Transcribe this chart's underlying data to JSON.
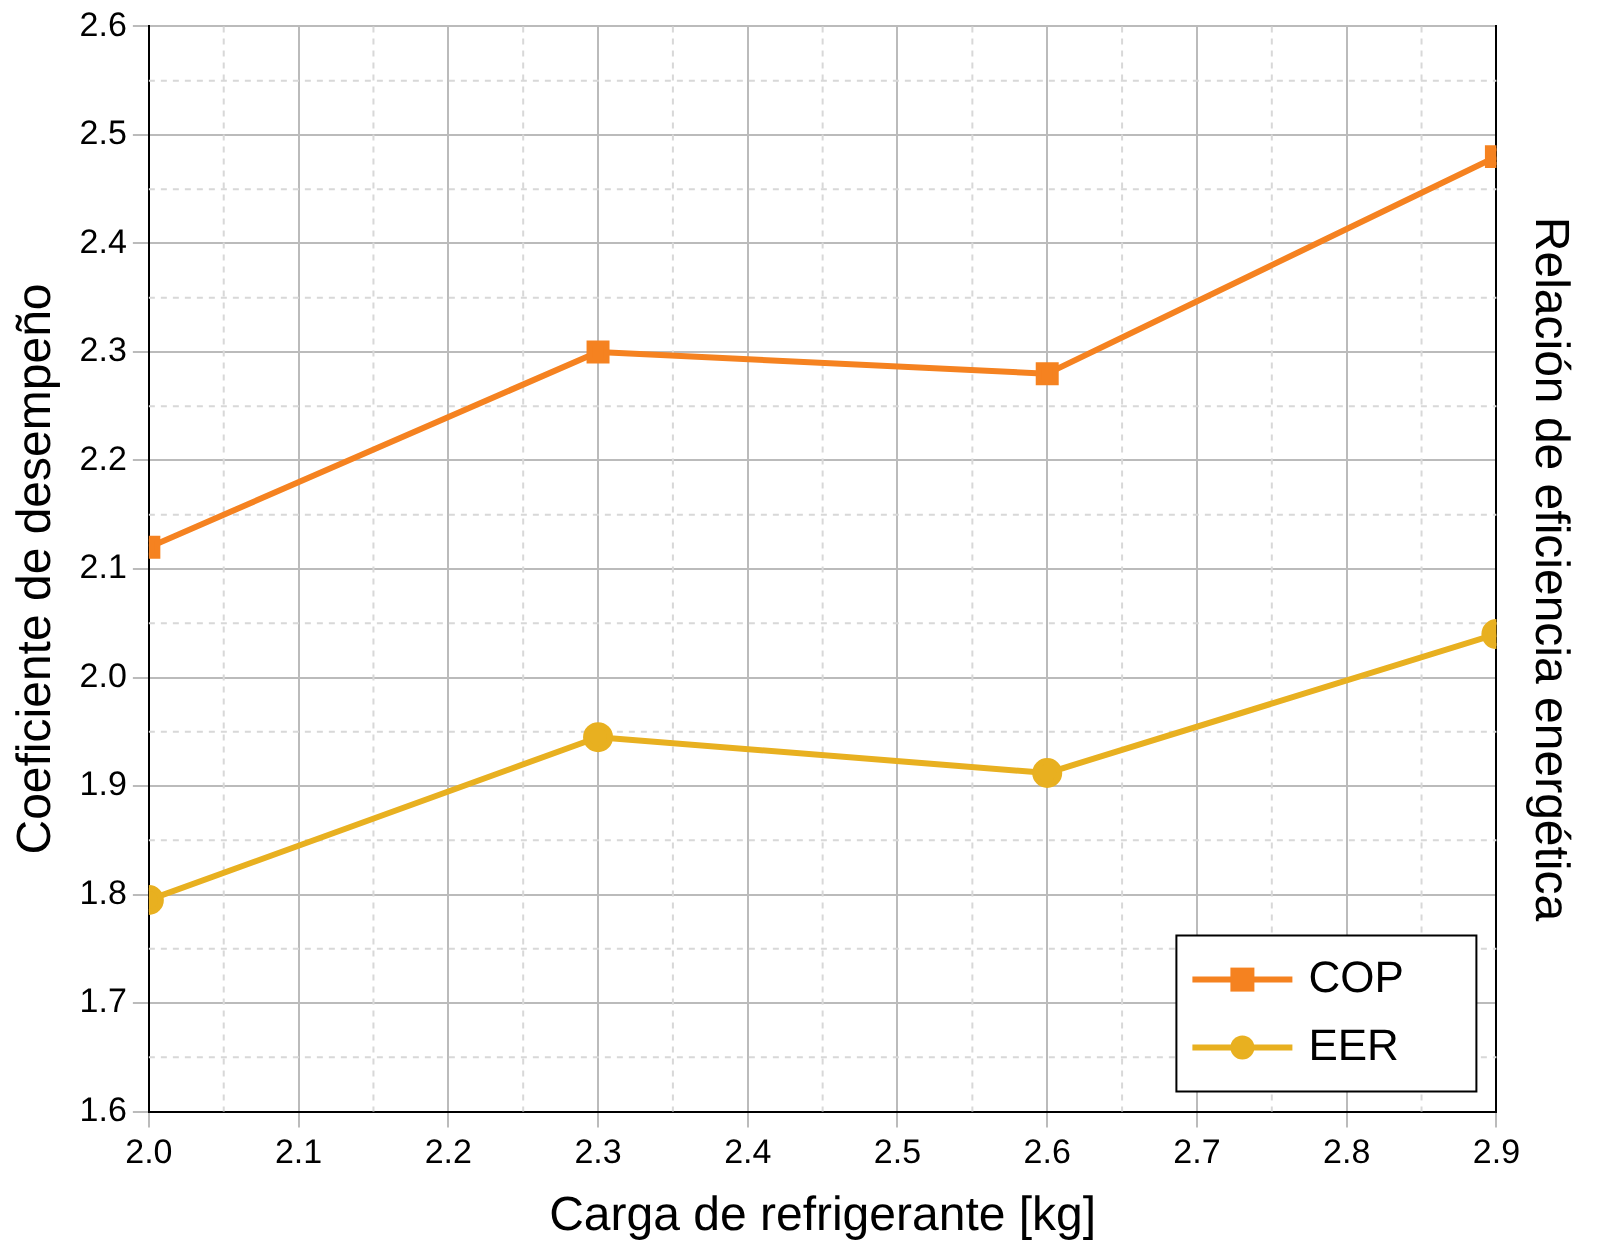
{
  "chart_data": {
    "type": "line",
    "xlabel": "Carga de refrigerante [kg]",
    "ylabel": "Coeficiente de desempeño",
    "y2label": "Relación de eficiencia energética",
    "x": [
      2.0,
      2.3,
      2.6,
      2.9
    ],
    "series": [
      {
        "name": "COP",
        "color": "#f58220",
        "marker": "square",
        "values": [
          2.12,
          2.3,
          2.28,
          2.48
        ]
      },
      {
        "name": "EER",
        "color": "#e8b020",
        "marker": "circle",
        "values": [
          1.795,
          1.945,
          1.912,
          2.04
        ]
      }
    ],
    "xlim": [
      2.0,
      2.9
    ],
    "xticks": [
      {
        "value": 2.0,
        "label": "2.0"
      },
      2.1,
      2.2,
      2.3,
      2.4,
      2.5,
      2.6,
      2.7,
      2.8,
      2.9
    ],
    "ylim": [
      1.6,
      2.6
    ],
    "yticks": [
      1.6,
      1.7,
      1.8,
      1.9,
      {
        "value": 2.0,
        "label": "2.0"
      },
      2.1,
      2.2,
      2.3,
      2.4,
      2.5,
      2.6
    ],
    "grid": true,
    "legend": "bottom right",
    "line_style": "solid"
  }
}
